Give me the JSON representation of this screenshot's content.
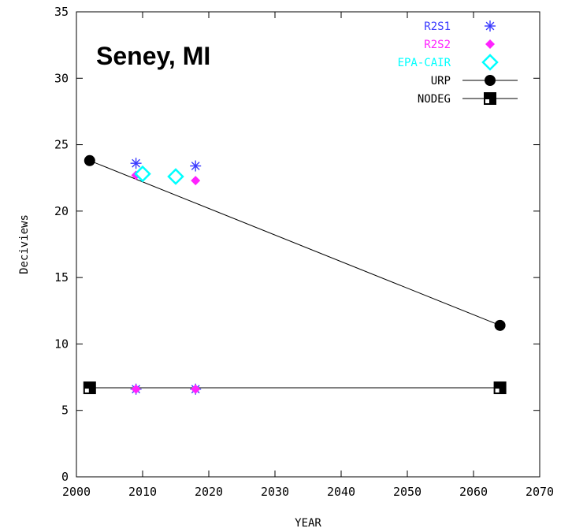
{
  "chart_data": {
    "type": "scatter",
    "title": "Seney, MI",
    "xlabel": "YEAR",
    "ylabel": "Deciviews",
    "xlim": [
      2000,
      2070
    ],
    "ylim": [
      0,
      35
    ],
    "x_ticks": [
      2000,
      2010,
      2020,
      2030,
      2040,
      2050,
      2060,
      2070
    ],
    "y_ticks": [
      0,
      5,
      10,
      15,
      20,
      25,
      30,
      35
    ],
    "legend_position": "top-right",
    "grid": false,
    "series": [
      {
        "name": "R2S1",
        "marker": "asterisk",
        "color": "#3a3aff",
        "points": [
          {
            "x": 2009,
            "y": 23.6
          },
          {
            "x": 2018,
            "y": 23.4
          },
          {
            "x": 2009,
            "y": 6.6
          },
          {
            "x": 2018,
            "y": 6.6
          }
        ]
      },
      {
        "name": "R2S2",
        "marker": "diamond-filled",
        "color": "#ff22ff",
        "points": [
          {
            "x": 2009,
            "y": 22.7
          },
          {
            "x": 2018,
            "y": 22.3
          },
          {
            "x": 2009,
            "y": 6.6
          },
          {
            "x": 2018,
            "y": 6.6
          }
        ]
      },
      {
        "name": "EPA-CAIR",
        "marker": "diamond-open",
        "color": "#00ffff",
        "points": [
          {
            "x": 2010,
            "y": 22.8
          },
          {
            "x": 2015,
            "y": 22.6
          }
        ]
      },
      {
        "name": "URP",
        "marker": "circle-filled",
        "color": "#000000",
        "line": true,
        "points": [
          {
            "x": 2002,
            "y": 23.8
          },
          {
            "x": 2064,
            "y": 11.4
          }
        ]
      },
      {
        "name": "NODEG",
        "marker": "square-half",
        "color": "#000000",
        "line": true,
        "points": [
          {
            "x": 2002,
            "y": 6.7
          },
          {
            "x": 2064,
            "y": 6.7
          }
        ]
      }
    ]
  }
}
